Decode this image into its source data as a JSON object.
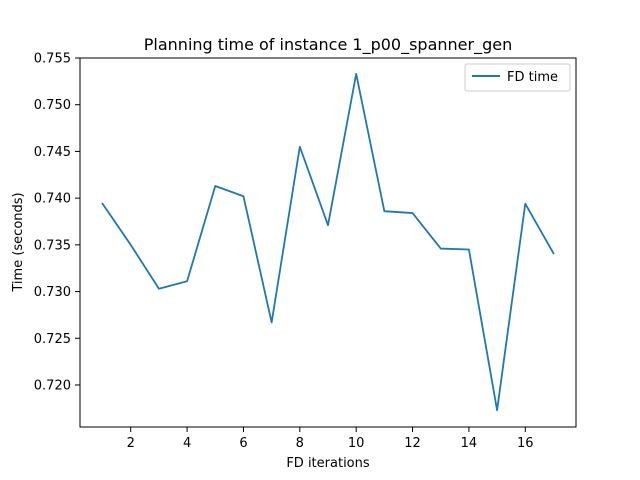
{
  "chart_data": {
    "type": "line",
    "title": "Planning time of instance 1_p00_spanner_gen",
    "xlabel": "FD iterations",
    "ylabel": "Time (seconds)",
    "xlim": [
      0.2,
      17.8
    ],
    "ylim": [
      0.7155,
      0.755
    ],
    "xticks": [
      2,
      4,
      6,
      8,
      10,
      12,
      14,
      16
    ],
    "xtick_labels": [
      "2",
      "4",
      "6",
      "8",
      "10",
      "12",
      "14",
      "16"
    ],
    "yticks": [
      0.72,
      0.725,
      0.73,
      0.735,
      0.74,
      0.745,
      0.75,
      0.755
    ],
    "ytick_labels": [
      "0.720",
      "0.725",
      "0.730",
      "0.735",
      "0.740",
      "0.745",
      "0.750",
      "0.755"
    ],
    "grid": false,
    "legend": {
      "placement": "top-right"
    },
    "series": [
      {
        "name": "FD time",
        "color": "#1f77b4",
        "x": [
          1,
          2,
          3,
          4,
          5,
          6,
          7,
          8,
          9,
          10,
          11,
          12,
          13,
          14,
          15,
          16,
          17
        ],
        "y": [
          0.7394,
          0.735,
          0.7303,
          0.7311,
          0.7413,
          0.7402,
          0.7267,
          0.7455,
          0.7371,
          0.7533,
          0.7386,
          0.7384,
          0.7346,
          0.7345,
          0.7173,
          0.7394,
          0.7341
        ]
      }
    ]
  }
}
